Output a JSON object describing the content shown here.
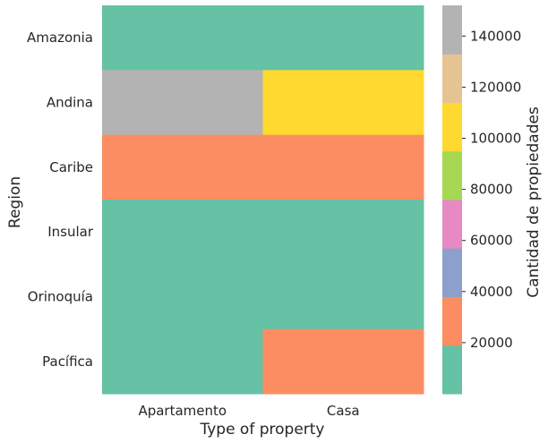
{
  "chart_data": {
    "type": "heatmap",
    "title": "",
    "xlabel": "Type of property",
    "ylabel": "Region",
    "x_categories": [
      "Apartamento",
      "Casa"
    ],
    "y_categories": [
      "Amazonia",
      "Andina",
      "Caribe",
      "Insular",
      "Orinoquía",
      "Pacífica"
    ],
    "values": [
      [
        300,
        600
      ],
      [
        145000,
        105000
      ],
      [
        25000,
        20000
      ],
      [
        50,
        80
      ],
      [
        1500,
        2500
      ],
      [
        18000,
        22000
      ]
    ],
    "colorbar": {
      "label": "Cantidad de propiedades",
      "min": 0,
      "max": 152000,
      "ticks": [
        20000,
        40000,
        60000,
        80000,
        100000,
        120000,
        140000
      ],
      "palette": [
        "#66c2a5",
        "#fc8d62",
        "#8da0cb",
        "#e78ac3",
        "#a6d854",
        "#ffd92f",
        "#e5c494",
        "#b3b3b3"
      ]
    },
    "grid": false,
    "legend": "right"
  }
}
